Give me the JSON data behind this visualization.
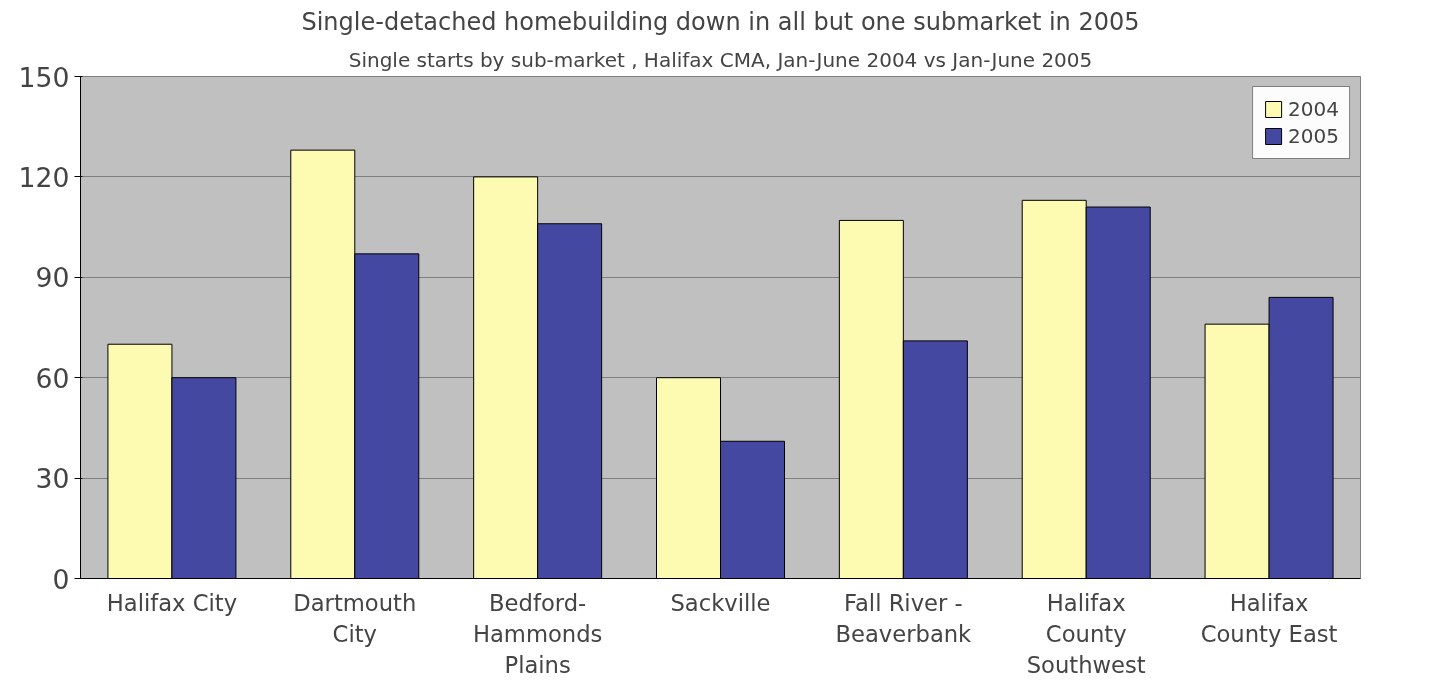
{
  "chart_data": {
    "type": "bar",
    "title": "Single-detached homebuilding down in all but one submarket in 2005",
    "subtitle": "Single starts by sub-market , Halifax CMA, Jan-June 2004 vs Jan-June 2005",
    "categories": [
      "Halifax City",
      "Dartmouth\nCity",
      "Bedford-\nHammonds\nPlains",
      "Sackville",
      "Fall River -\nBeaverbank",
      "Halifax\nCounty\nSouthwest",
      "Halifax\nCounty East"
    ],
    "series": [
      {
        "name": "2004",
        "color": "#fdfab2",
        "values": [
          70,
          128,
          120,
          60,
          107,
          113,
          76
        ]
      },
      {
        "name": "2005",
        "color": "#4548a0",
        "values": [
          60,
          97,
          106,
          41,
          71,
          111,
          84
        ]
      }
    ],
    "ylim": [
      0,
      150
    ],
    "yticks": [
      0,
      30,
      60,
      90,
      120,
      150
    ],
    "grid": "y",
    "legend": "top right"
  }
}
